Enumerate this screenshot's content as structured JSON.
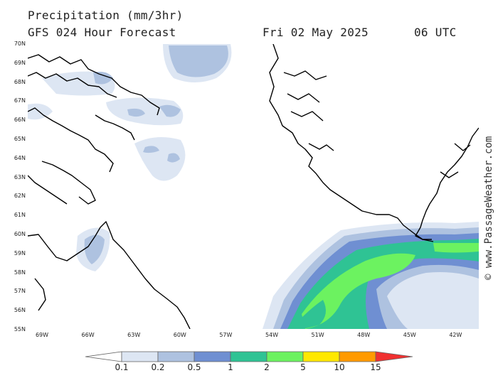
{
  "header": {
    "title": "Precipitation (mm/3hr)",
    "subtitle": "GFS 024 Hour Forecast",
    "date": "Fri 02 May 2025",
    "time": "06 UTC"
  },
  "map": {
    "lat_labels": [
      "70N",
      "69N",
      "68N",
      "67N",
      "66N",
      "65N",
      "64N",
      "63N",
      "62N",
      "61N",
      "60N",
      "59N",
      "58N",
      "57N",
      "56N",
      "55N"
    ],
    "lon_labels": [
      "69W",
      "66W",
      "63W",
      "60W",
      "57W",
      "54W",
      "51W",
      "48W",
      "45W",
      "42W"
    ]
  },
  "credit": "© www.PassageWeather.com",
  "legend": {
    "labels": [
      "0.1",
      "0.2",
      "0.5",
      "1",
      "2",
      "5",
      "10",
      "15"
    ],
    "colors": [
      "#ffffff",
      "#dde6f3",
      "#aec2e0",
      "#6f8fd2",
      "#2fc394",
      "#6cf260",
      "#ffe800",
      "#ff9a00",
      "#f03030"
    ]
  }
}
